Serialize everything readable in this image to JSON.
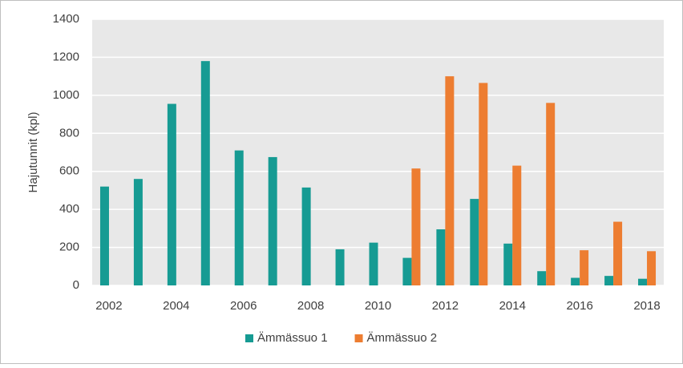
{
  "chart_data": {
    "type": "bar",
    "y_label": "Hajutunnit (kpl)",
    "categories": [
      "2002",
      null,
      "2004",
      null,
      "2006",
      null,
      "2008",
      null,
      "2010",
      null,
      "2012",
      null,
      "2014",
      null,
      "2016",
      null,
      "2018"
    ],
    "series": [
      {
        "name": "Ämmässuo 1",
        "color": "#169b93",
        "values": [
          520,
          560,
          955,
          1180,
          710,
          675,
          515,
          190,
          225,
          145,
          295,
          455,
          220,
          75,
          40,
          50,
          35
        ]
      },
      {
        "name": "Ämmässuo 2",
        "color": "#ed7d31",
        "values": [
          null,
          null,
          null,
          null,
          null,
          null,
          null,
          null,
          null,
          615,
          1100,
          1065,
          630,
          960,
          185,
          335,
          180
        ]
      }
    ],
    "ylim": [
      0,
      1400
    ],
    "yticks": [
      0,
      200,
      400,
      600,
      800,
      1000,
      1200,
      1400
    ],
    "grid": true,
    "legend": "bottom"
  }
}
